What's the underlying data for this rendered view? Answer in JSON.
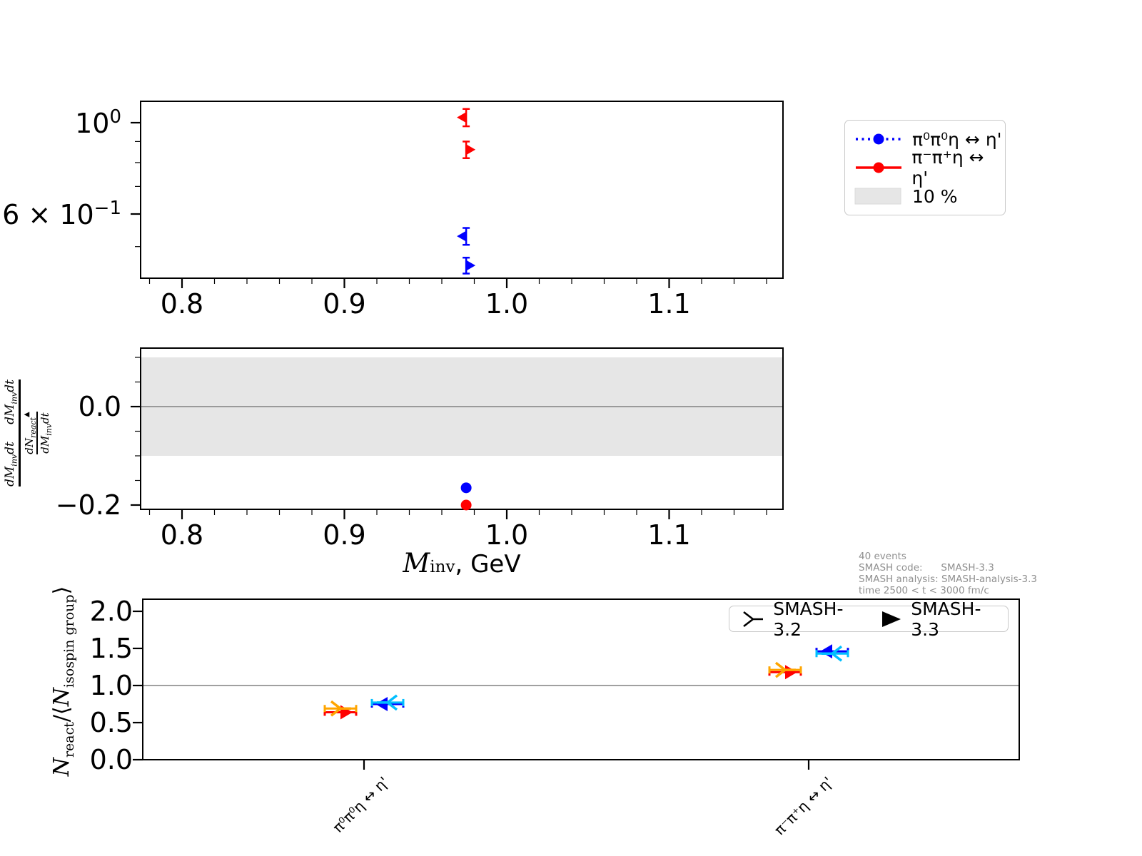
{
  "top_legend": {
    "entries": [
      {
        "label": "π⁰π⁰η ↔ η'",
        "color": "#0000ff",
        "style": "dotted-line-circle"
      },
      {
        "label": "π⁻π⁺η ↔ η'",
        "color": "#ff0000",
        "style": "solid-line-circle"
      },
      {
        "label": "10 %",
        "color": "#e6e6e6",
        "style": "patch"
      }
    ]
  },
  "bottom_legend": {
    "entries": [
      {
        "label": "SMASH-3.2",
        "marker": "tri-prong"
      },
      {
        "label": "SMASH-3.3",
        "marker": "filled-right-triangle"
      }
    ]
  },
  "info_text": {
    "lines": [
      "40 events",
      "SMASH code:      SMASH-3.3",
      "SMASH analysis: SMASH-analysis-3.3",
      "time 2500 < t < 3000 fm/c"
    ]
  },
  "axis_labels": {
    "mid_xlabel": {
      "m": "M",
      "inv": "inv",
      "rest": ", GeV"
    },
    "mid_ylabel": {
      "dm": "dM",
      "inv": "inv",
      "dt": "dt",
      "dn": "dN",
      "react": "react",
      "tri": "▲"
    },
    "bottom_ylabel": {
      "n": "N",
      "react": "react",
      "mid": "/⟨",
      "n2": "N",
      "iso": "isospin group",
      "end": "⟩"
    }
  },
  "ticks": {
    "top_x": [
      "0.8",
      "0.9",
      "1.0",
      "1.1"
    ],
    "top_y": [
      {
        "base": "10",
        "exp": "0"
      },
      {
        "base": "6 × 10",
        "exp": "−1"
      }
    ],
    "mid_x": [
      "0.8",
      "0.9",
      "1.0",
      "1.1"
    ],
    "mid_y": [
      "0.0",
      "−0.2"
    ],
    "bottom_y": [
      "0.0",
      "0.5",
      "1.0",
      "1.5",
      "2.0"
    ],
    "bottom_x": [
      "π⁰π⁰η ↔ η'",
      "π⁻π⁺η ↔ η'"
    ]
  },
  "colors": {
    "blue": "#0000ff",
    "red": "#ff0000",
    "orange": "#ffa500",
    "cyan": "#00bfff",
    "band_gray": "#e6e6e6",
    "ref_line_gray": "#808080",
    "info_gray": "#909090",
    "axis_black": "#000000"
  },
  "chart_data": [
    {
      "panel": "invariant-mass-spectrum",
      "type": "scatter",
      "yscale": "log",
      "xlim": [
        0.775,
        1.17
      ],
      "ylim": [
        0.42,
        1.13
      ],
      "xticks": [
        0.8,
        0.9,
        1.0,
        1.1
      ],
      "ytick_labels": [
        "10^0",
        "6 × 10^-1"
      ],
      "x_minor_step": 0.02,
      "series": [
        {
          "name": "π⁻π⁺η ↔ η' SMASH-3.2",
          "color": "#ff0000",
          "marker": "caret-left",
          "x": 0.975,
          "y": 1.03,
          "yerr": 0.05
        },
        {
          "name": "π⁻π⁺η ↔ η' SMASH-3.3",
          "color": "#ff0000",
          "marker": "caret-right",
          "x": 0.975,
          "y": 0.86,
          "yerr": 0.04
        },
        {
          "name": "π⁰π⁰η ↔ η' SMASH-3.2",
          "color": "#0000ff",
          "marker": "caret-left",
          "x": 0.975,
          "y": 0.53,
          "yerr": 0.025
        },
        {
          "name": "π⁰π⁰η ↔ η' SMASH-3.3",
          "color": "#0000ff",
          "marker": "caret-right",
          "x": 0.975,
          "y": 0.45,
          "yerr": 0.02
        }
      ]
    },
    {
      "panel": "relative-deviation",
      "type": "scatter",
      "xlabel": "M_inv, GeV",
      "xlim": [
        0.775,
        1.17
      ],
      "ylim": [
        -0.21,
        0.12
      ],
      "yticks": [
        0.0,
        -0.2
      ],
      "band": {
        "from": -0.1,
        "to": 0.1,
        "label": "10 %"
      },
      "zero_line": 0.0,
      "series": [
        {
          "name": "π⁰π⁰η ↔ η'",
          "color": "#0000ff",
          "marker": "circle",
          "x": 0.975,
          "y": -0.165
        },
        {
          "name": "π⁻π⁺η ↔ η'",
          "color": "#ff0000",
          "marker": "circle",
          "x": 0.975,
          "y": -0.2
        }
      ]
    },
    {
      "panel": "nreact-per-isospin-group",
      "type": "scatter",
      "ylabel": "N_react/⟨N_isospin group⟩",
      "categories": [
        "π⁰π⁰η ↔ η'",
        "π⁻π⁺η ↔ η'"
      ],
      "ylim": [
        0,
        2.16
      ],
      "yticks": [
        0.0,
        0.5,
        1.0,
        1.5,
        2.0
      ],
      "ref_line": 1.0,
      "series": [
        {
          "name": "forward SMASH-3.3",
          "color": "#ff0000",
          "marker": "caret-right",
          "offset": "left",
          "values": [
            0.64,
            1.18
          ]
        },
        {
          "name": "forward SMASH-3.2",
          "color": "#ffa500",
          "marker": "tri-right",
          "offset": "left",
          "values": [
            0.69,
            1.21
          ]
        },
        {
          "name": "backward SMASH-3.3",
          "color": "#0000ff",
          "marker": "caret-left",
          "offset": "right",
          "values": [
            0.75,
            1.46
          ]
        },
        {
          "name": "backward SMASH-3.2",
          "color": "#00bfff",
          "marker": "tri-left",
          "offset": "right",
          "values": [
            0.77,
            1.43
          ]
        }
      ]
    }
  ]
}
